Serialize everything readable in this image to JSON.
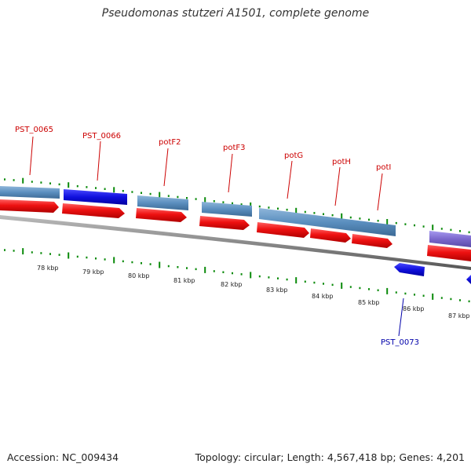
{
  "title": "Pseudomonas stutzeri A1501, complete genome",
  "footer": {
    "accession": "Accession: NC_009434",
    "stats": "Topology: circular; Length: 4,567,418 bp; Genes: 4,201"
  },
  "colors": {
    "gene_red_label": "#cc0000",
    "gene_blue_label": "#0000aa",
    "cds_red": "#ee1111",
    "steel_blue": "#5b8fbf",
    "dark_blue": "#1010dd",
    "purple": "#7b68cc",
    "tick_green": "#0a8a0a",
    "backbone": "#8a8a8a"
  },
  "kbp_labels": [
    "78 kbp",
    "79 kbp",
    "80 kbp",
    "81 kbp",
    "82 kbp",
    "83 kbp",
    "84 kbp",
    "85 kbp",
    "86 kbp",
    "87 kbp"
  ],
  "gene_labels": [
    {
      "name": "PST_0065",
      "strand": "forward"
    },
    {
      "name": "PST_0066",
      "strand": "forward"
    },
    {
      "name": "potF2",
      "strand": "forward"
    },
    {
      "name": "potF3",
      "strand": "forward"
    },
    {
      "name": "potG",
      "strand": "forward"
    },
    {
      "name": "potH",
      "strand": "forward"
    },
    {
      "name": "potI",
      "strand": "forward"
    },
    {
      "name": "PST_0073",
      "strand": "reverse"
    }
  ]
}
